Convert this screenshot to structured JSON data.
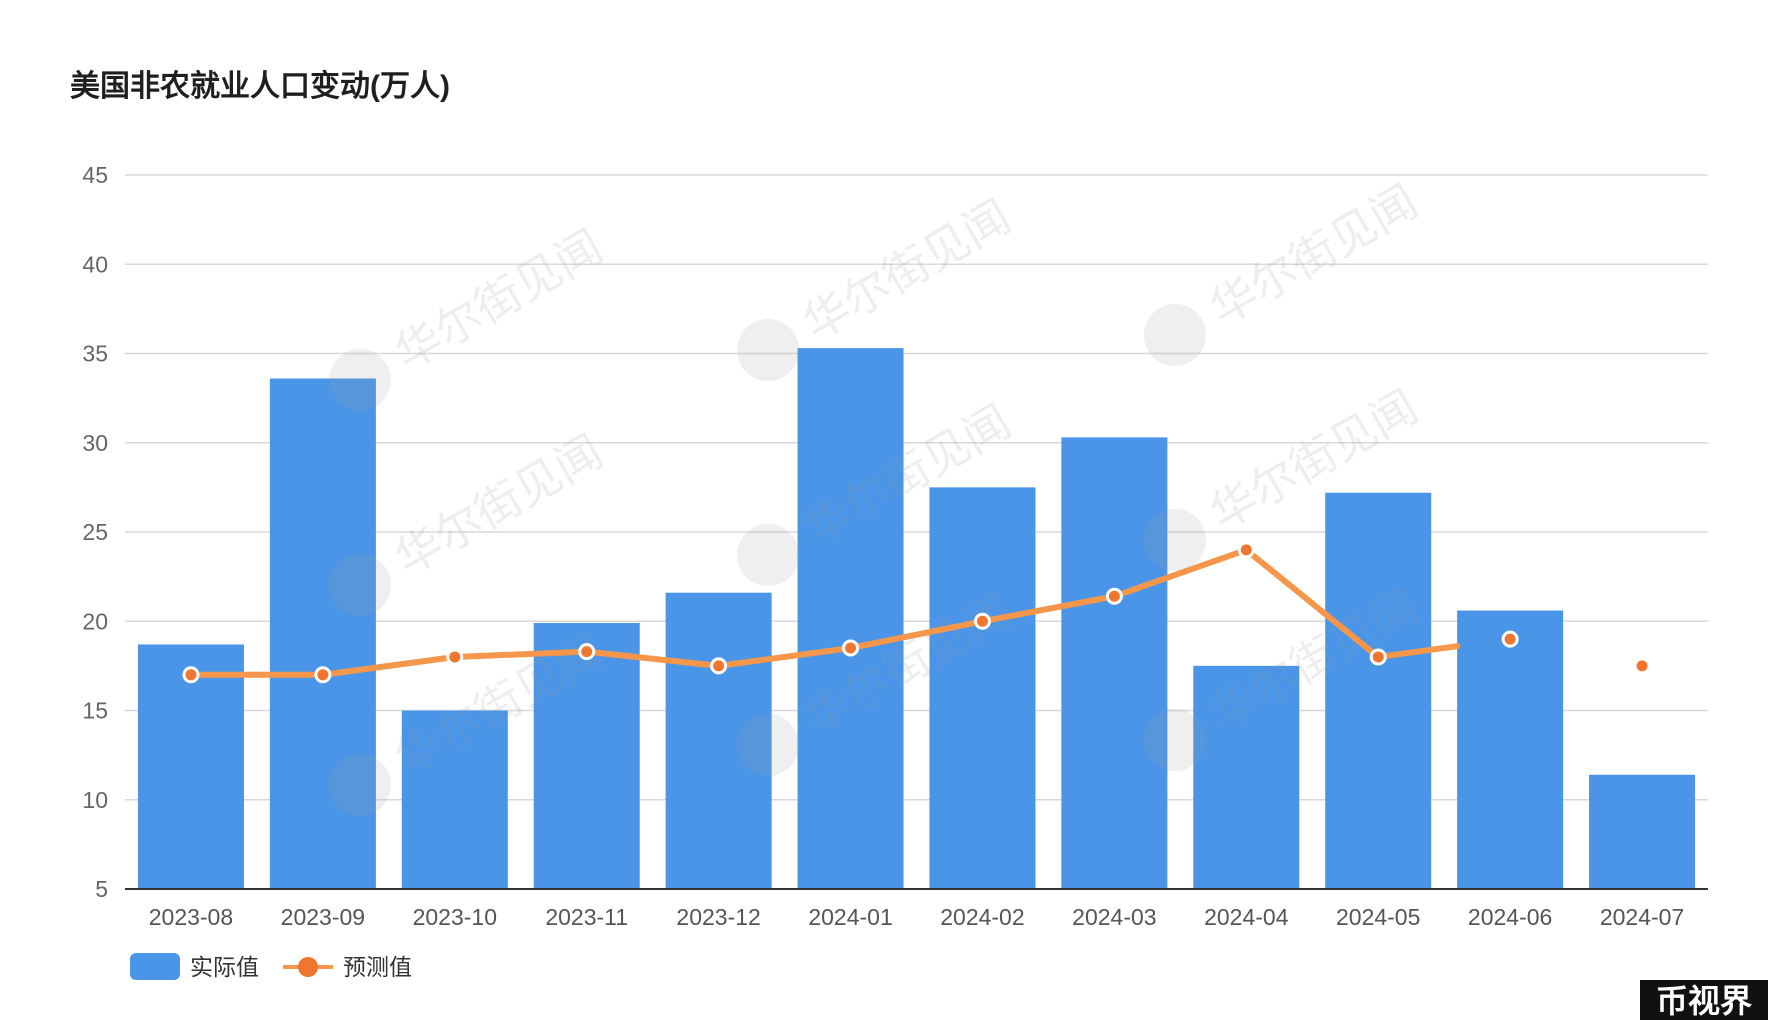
{
  "chart_data": {
    "type": "bar",
    "title": "美国非农就业人口变动(万人)",
    "categories": [
      "2023-08",
      "2023-09",
      "2023-10",
      "2023-11",
      "2023-12",
      "2024-01",
      "2024-02",
      "2024-03",
      "2024-04",
      "2024-05",
      "2024-06",
      "2024-07"
    ],
    "series": [
      {
        "name": "实际值",
        "type": "bar",
        "color": "#4a95e8",
        "values": [
          18.7,
          33.6,
          15.0,
          19.9,
          21.6,
          35.3,
          27.5,
          30.3,
          17.5,
          27.2,
          20.6,
          11.4
        ]
      },
      {
        "name": "预测值",
        "type": "line",
        "color": "#f5964a",
        "values": [
          17.0,
          17.0,
          18.0,
          18.3,
          17.5,
          18.5,
          20.0,
          21.4,
          24.0,
          18.0,
          19.0,
          17.5
        ]
      }
    ],
    "yticks": [
      5,
      10,
      15,
      20,
      25,
      30,
      35,
      40,
      45
    ],
    "ylim": [
      5,
      45
    ],
    "xlabel": "",
    "ylabel": "",
    "grid": true,
    "legend_position": "bottom-left"
  },
  "watermark": {
    "text": "华尔街见闻",
    "logo": "W"
  },
  "badge": {
    "text": "币视界"
  }
}
